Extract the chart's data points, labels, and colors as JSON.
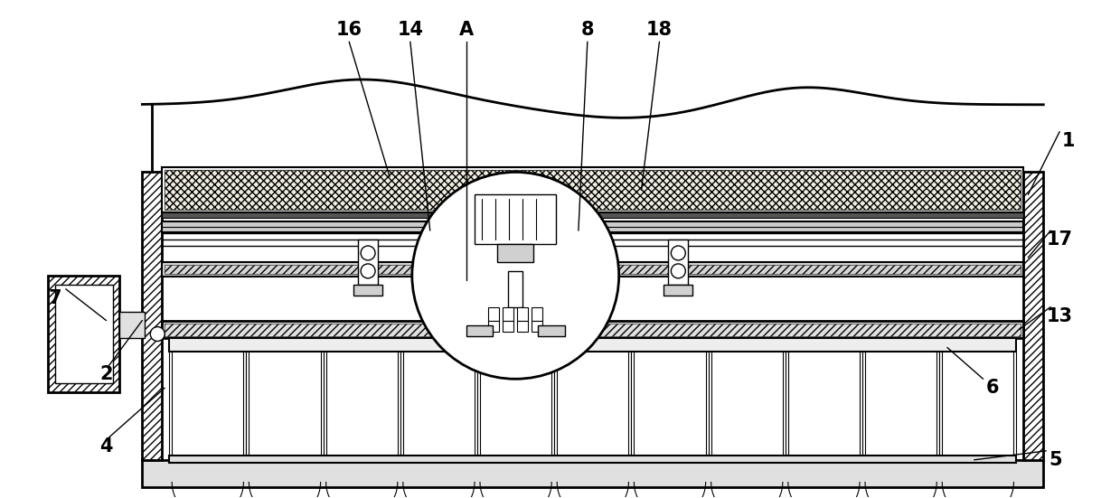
{
  "bg_color": "#ffffff",
  "lc": "#000000",
  "figsize": [
    12.39,
    5.51
  ],
  "dpi": 100,
  "xmin": 0,
  "xmax": 1239,
  "ymin": 0,
  "ymax": 551,
  "labels": [
    [
      "16",
      385,
      32
    ],
    [
      "14",
      453,
      32
    ],
    [
      "A",
      515,
      32
    ],
    [
      "8",
      650,
      32
    ],
    [
      "18",
      730,
      32
    ],
    [
      "1",
      1185,
      155
    ],
    [
      "17",
      1175,
      265
    ],
    [
      "7",
      58,
      330
    ],
    [
      "2",
      115,
      415
    ],
    [
      "13",
      1175,
      350
    ],
    [
      "6",
      1100,
      430
    ],
    [
      "4",
      115,
      495
    ],
    [
      "5",
      1170,
      510
    ]
  ],
  "label_lines": [
    [
      "16",
      385,
      45,
      430,
      195
    ],
    [
      "14",
      453,
      45,
      475,
      255
    ],
    [
      "A",
      515,
      45,
      515,
      310
    ],
    [
      "8",
      650,
      45,
      640,
      255
    ],
    [
      "18",
      730,
      45,
      710,
      210
    ],
    [
      "1",
      1175,
      145,
      1140,
      215
    ],
    [
      "17",
      1165,
      255,
      1140,
      285
    ],
    [
      "7",
      70,
      320,
      115,
      355
    ],
    [
      "2",
      118,
      405,
      155,
      355
    ],
    [
      "13",
      1165,
      340,
      1130,
      365
    ],
    [
      "6",
      1090,
      420,
      1050,
      385
    ],
    [
      "4",
      118,
      485,
      180,
      430
    ],
    [
      "5",
      1160,
      500,
      1080,
      510
    ]
  ]
}
